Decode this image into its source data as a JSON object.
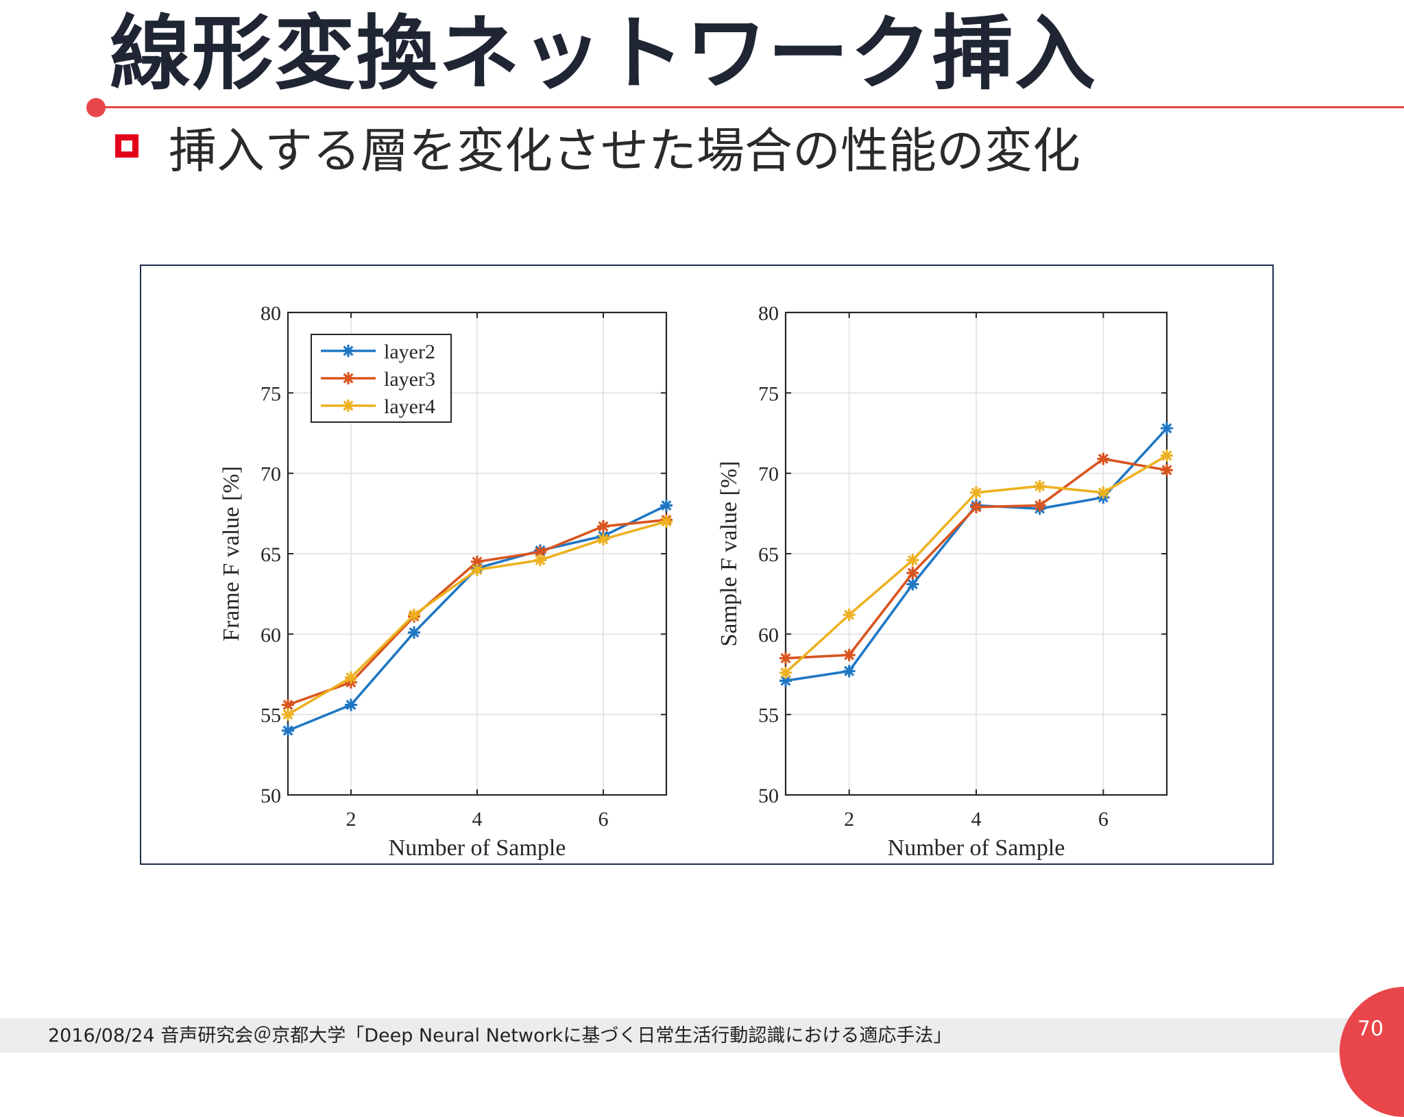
{
  "slide": {
    "title": "線形変換ネットワーク挿入",
    "bullet": "挿入する層を変化させた場合の性能の変化",
    "footer": "2016/08/24 音声研究会＠京都大学「Deep Neural Networkに基づく日常生活行動認識における適応手法」",
    "page_number": "70"
  },
  "colors": {
    "accent": "#e8464a",
    "bullet": "#e3001b",
    "layer2": "#1f77c4",
    "layer3": "#d9541e",
    "layer4": "#edb120"
  },
  "chart_data": [
    {
      "type": "line",
      "xlabel": "Number of Sample",
      "ylabel": "Frame F value [%]",
      "x": [
        1,
        2,
        3,
        4,
        5,
        6,
        7
      ],
      "xlim": [
        1,
        7
      ],
      "ylim": [
        50,
        80
      ],
      "xticks": [
        2,
        4,
        6
      ],
      "yticks": [
        50,
        55,
        60,
        65,
        70,
        75,
        80
      ],
      "grid": true,
      "legend": "top-left",
      "marker": "asterisk",
      "series": [
        {
          "name": "layer2",
          "values": [
            54.0,
            55.6,
            60.1,
            64.1,
            65.2,
            66.1,
            68.0
          ]
        },
        {
          "name": "layer3",
          "values": [
            55.6,
            57.0,
            61.1,
            64.5,
            65.1,
            66.7,
            67.1
          ]
        },
        {
          "name": "layer4",
          "values": [
            55.0,
            57.3,
            61.2,
            64.0,
            64.6,
            65.9,
            67.0
          ]
        }
      ]
    },
    {
      "type": "line",
      "xlabel": "Number of Sample",
      "ylabel": "Sample F value [%]",
      "x": [
        1,
        2,
        3,
        4,
        5,
        6,
        7
      ],
      "xlim": [
        1,
        7
      ],
      "ylim": [
        50,
        80
      ],
      "xticks": [
        2,
        4,
        6
      ],
      "yticks": [
        50,
        55,
        60,
        65,
        70,
        75,
        80
      ],
      "grid": true,
      "legend": "none",
      "marker": "asterisk",
      "series": [
        {
          "name": "layer2",
          "values": [
            57.1,
            57.7,
            63.1,
            68.0,
            67.8,
            68.5,
            72.8
          ]
        },
        {
          "name": "layer3",
          "values": [
            58.5,
            58.7,
            63.8,
            67.9,
            68.0,
            70.9,
            70.2
          ]
        },
        {
          "name": "layer4",
          "values": [
            57.6,
            61.2,
            64.6,
            68.8,
            69.2,
            68.8,
            71.1
          ]
        }
      ]
    }
  ]
}
